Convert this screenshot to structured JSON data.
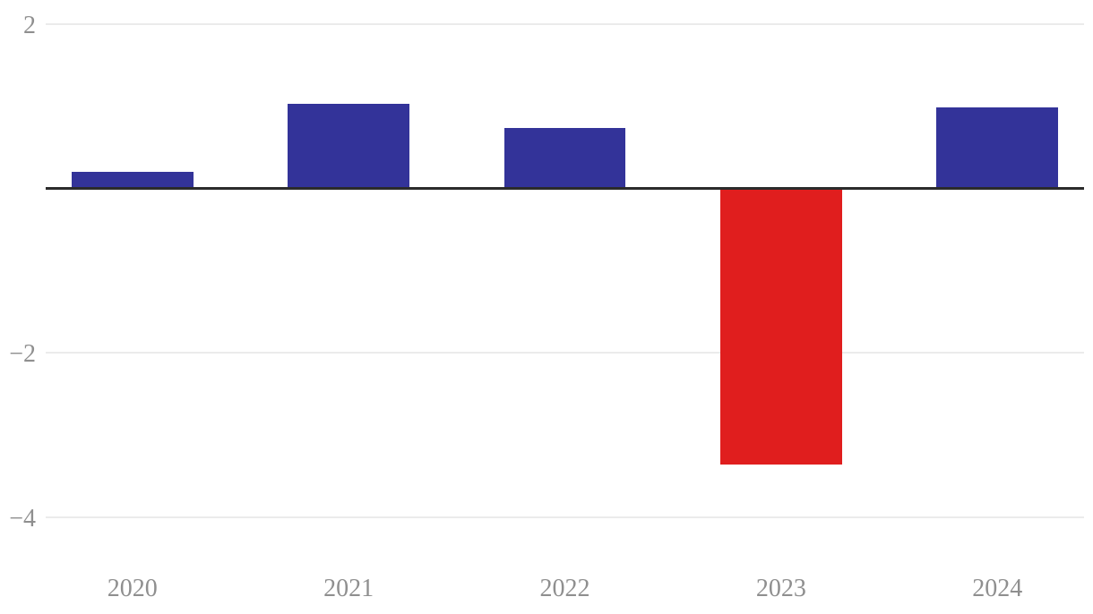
{
  "chart_data": {
    "type": "bar",
    "categories": [
      "2020",
      "2021",
      "2022",
      "2023",
      "2024"
    ],
    "values": [
      0.2,
      1.03,
      0.74,
      -3.36,
      0.99
    ],
    "title": "",
    "xlabel": "",
    "ylabel": "",
    "ylim": [
      -4.7,
      2.3
    ],
    "yticks": [
      2,
      -2,
      -4
    ],
    "ytick_labels": [
      "2",
      "−2",
      "−4"
    ],
    "grid": "horizontal-only",
    "legend": "none",
    "zero_baseline": true
  },
  "colors": {
    "positive_bar": "#333399",
    "negative_bar": "#E01E1E",
    "zero_axis_line": "#2B2B2B",
    "gridline": "#EBEBEB",
    "tick_label_text": "#8F8F8F",
    "background": "#FFFFFF"
  }
}
